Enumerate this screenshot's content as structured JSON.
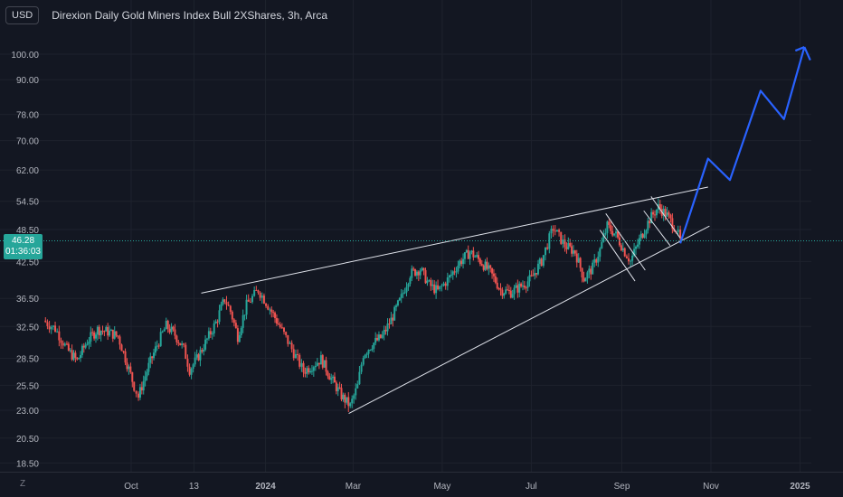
{
  "header": {
    "currency": "USD",
    "title": "Direxion Daily Gold Miners Index Bull 2XShares, 3h, Arca"
  },
  "price_tag": {
    "price": "46.28",
    "countdown": "01:36:03"
  },
  "corner_label": "Z",
  "colors": {
    "background": "#131722",
    "up": "#26a69a",
    "down": "#ef5350",
    "projection": "#2962ff",
    "trendline": "#e0e3eb",
    "grid": "#1e222d",
    "axis_text": "#b2b5be",
    "current_price_line": "#26a69a"
  },
  "chart_data": {
    "type": "candlestick",
    "title": "Direxion Daily Gold Miners Index Bull 2XShares, 3h, Arca",
    "scale": "log",
    "grid": true,
    "y_ticks": [
      100.0,
      90.0,
      78.0,
      70.0,
      62.0,
      54.5,
      48.5,
      42.5,
      36.5,
      32.5,
      28.5,
      25.5,
      23.0,
      20.5,
      18.5
    ],
    "y_tick_labels": [
      "100.00",
      "90.00",
      "78.00",
      "70.00",
      "62.00",
      "54.50",
      "48.50",
      "42.50",
      "36.50",
      "32.50",
      "28.50",
      "25.50",
      "23.00",
      "20.50",
      "18.50"
    ],
    "x_ticks": [
      {
        "label": "Oct",
        "date": "2023-10-01"
      },
      {
        "label": "13",
        "date": "2023-11-13"
      },
      {
        "label": "2024",
        "date": "2024-01-01"
      },
      {
        "label": "Mar",
        "date": "2024-03-01"
      },
      {
        "label": "May",
        "date": "2024-05-01"
      },
      {
        "label": "Jul",
        "date": "2024-07-01"
      },
      {
        "label": "Sep",
        "date": "2024-09-01"
      },
      {
        "label": "Nov",
        "date": "2024-11-01"
      },
      {
        "label": "2025",
        "date": "2025-01-01"
      }
    ],
    "current_price": 46.28,
    "price_path": [
      [
        "2023-08-02",
        33.3
      ],
      [
        "2023-08-10",
        32.2
      ],
      [
        "2023-08-18",
        29.6
      ],
      [
        "2023-08-25",
        28.2
      ],
      [
        "2023-09-01",
        30.6
      ],
      [
        "2023-09-08",
        32.1
      ],
      [
        "2023-09-15",
        31.8
      ],
      [
        "2023-09-22",
        31.2
      ],
      [
        "2023-09-27",
        28.5
      ],
      [
        "2023-10-03",
        25.4
      ],
      [
        "2023-10-06",
        24.3
      ],
      [
        "2023-10-13",
        27.6
      ],
      [
        "2023-10-20",
        30.6
      ],
      [
        "2023-10-25",
        32.6
      ],
      [
        "2023-10-31",
        31.4
      ],
      [
        "2023-11-06",
        29.6
      ],
      [
        "2023-11-10",
        27.2
      ],
      [
        "2023-11-15",
        28.4
      ],
      [
        "2023-11-22",
        30.8
      ],
      [
        "2023-11-28",
        33.0
      ],
      [
        "2023-12-04",
        36.4
      ],
      [
        "2023-12-08",
        34.6
      ],
      [
        "2023-12-13",
        31.2
      ],
      [
        "2023-12-19",
        35.5
      ],
      [
        "2023-12-27",
        37.8
      ],
      [
        "2024-01-04",
        35.0
      ],
      [
        "2024-01-11",
        32.4
      ],
      [
        "2024-01-19",
        29.6
      ],
      [
        "2024-01-27",
        27.0
      ],
      [
        "2024-02-03",
        27.8
      ],
      [
        "2024-02-08",
        28.4
      ],
      [
        "2024-02-15",
        26.2
      ],
      [
        "2024-02-22",
        24.4
      ],
      [
        "2024-02-28",
        23.4
      ],
      [
        "2024-03-04",
        25.4
      ],
      [
        "2024-03-08",
        29.0
      ],
      [
        "2024-03-14",
        30.2
      ],
      [
        "2024-03-21",
        31.2
      ],
      [
        "2024-03-27",
        33.4
      ],
      [
        "2024-04-03",
        36.6
      ],
      [
        "2024-04-09",
        40.4
      ],
      [
        "2024-04-16",
        41.2
      ],
      [
        "2024-04-22",
        38.6
      ],
      [
        "2024-04-28",
        37.6
      ],
      [
        "2024-05-06",
        39.8
      ],
      [
        "2024-05-13",
        42.4
      ],
      [
        "2024-05-20",
        44.2
      ],
      [
        "2024-05-27",
        42.6
      ],
      [
        "2024-06-03",
        40.6
      ],
      [
        "2024-06-10",
        37.8
      ],
      [
        "2024-06-17",
        37.4
      ],
      [
        "2024-06-24",
        38.4
      ],
      [
        "2024-07-01",
        39.6
      ],
      [
        "2024-07-08",
        42.6
      ],
      [
        "2024-07-16",
        48.8
      ],
      [
        "2024-07-24",
        45.4
      ],
      [
        "2024-07-31",
        44.2
      ],
      [
        "2024-08-06",
        39.6
      ],
      [
        "2024-08-12",
        41.4
      ],
      [
        "2024-08-17",
        44.6
      ],
      [
        "2024-08-22",
        49.2
      ],
      [
        "2024-08-28",
        47.4
      ],
      [
        "2024-09-03",
        44.2
      ],
      [
        "2024-09-07",
        42.6
      ],
      [
        "2024-09-13",
        46.4
      ],
      [
        "2024-09-20",
        50.6
      ],
      [
        "2024-09-26",
        53.2
      ],
      [
        "2024-10-02",
        51.4
      ],
      [
        "2024-10-08",
        48.6
      ],
      [
        "2024-10-11",
        46.3
      ]
    ],
    "projection": [
      [
        "2024-10-11",
        45.8
      ],
      [
        "2024-10-30",
        65.0
      ],
      [
        "2024-11-14",
        59.5
      ],
      [
        "2024-12-05",
        86.0
      ],
      [
        "2024-12-21",
        76.5
      ],
      [
        "2025-01-04",
        103.0
      ]
    ],
    "projection_arrowhead_end": [
      "2025-01-08",
      97.6
    ],
    "trendlines": [
      {
        "from": [
          "2023-11-18",
          37.3
        ],
        "to": [
          "2024-10-30",
          57.8
        ]
      },
      {
        "from": [
          "2024-02-27",
          22.7
        ],
        "to": [
          "2024-10-31",
          49.2
        ]
      },
      {
        "from": [
          "2024-08-21",
          51.8
        ],
        "to": [
          "2024-09-17",
          41.0
        ]
      },
      {
        "from": [
          "2024-08-17",
          48.4
        ],
        "to": [
          "2024-09-10",
          39.2
        ]
      },
      {
        "from": [
          "2024-09-21",
          55.6
        ],
        "to": [
          "2024-10-11",
          46.8
        ]
      },
      {
        "from": [
          "2024-09-16",
          52.4
        ],
        "to": [
          "2024-10-04",
          45.4
        ]
      }
    ]
  }
}
